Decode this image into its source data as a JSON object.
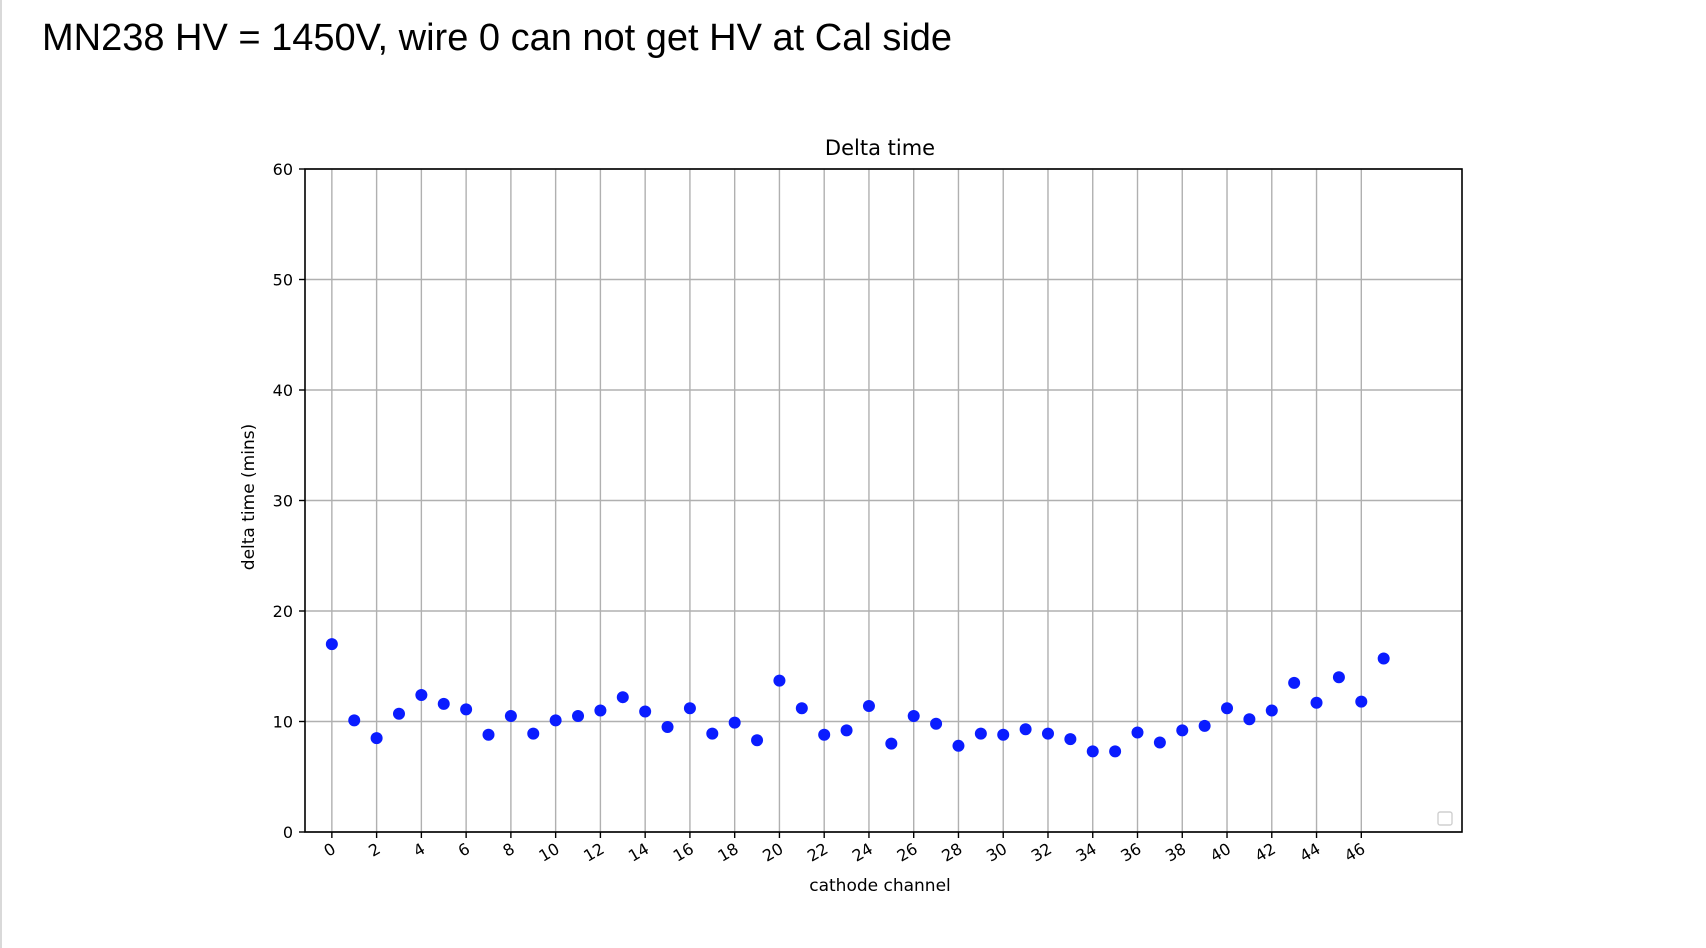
{
  "slide": {
    "title": "MN238 HV = 1450V, wire 0 can not get HV at Cal side"
  },
  "chart_data": {
    "type": "scatter",
    "title": "Delta time",
    "xlabel": "cathode channel",
    "ylabel": "delta time (mins)",
    "xlim": [
      -1.2,
      50.5
    ],
    "ylim": [
      0,
      60
    ],
    "xticks": [
      0,
      2,
      4,
      6,
      8,
      10,
      12,
      14,
      16,
      18,
      20,
      22,
      24,
      26,
      28,
      30,
      32,
      34,
      36,
      38,
      40,
      42,
      44,
      46
    ],
    "yticks": [
      0,
      10,
      20,
      30,
      40,
      50,
      60
    ],
    "grid": true,
    "legend": "bottom-right (empty)",
    "marker_color": "#0a1cff",
    "series": [
      {
        "x": [
          0,
          1,
          2,
          3,
          4,
          5,
          6,
          7,
          8,
          9,
          10,
          11,
          12,
          13,
          14,
          15,
          16,
          17,
          18,
          19,
          20,
          21,
          22,
          23,
          24,
          25,
          26,
          27,
          28,
          29,
          30,
          31,
          32,
          33,
          34,
          35,
          36,
          37,
          38,
          39,
          40,
          41,
          42,
          43,
          44,
          45,
          46,
          47
        ],
        "y": [
          17.0,
          10.1,
          8.5,
          10.7,
          12.4,
          11.6,
          11.1,
          8.8,
          10.5,
          8.9,
          10.1,
          10.5,
          11.0,
          12.2,
          10.9,
          9.5,
          11.2,
          8.9,
          9.9,
          8.3,
          13.7,
          11.2,
          8.8,
          9.2,
          11.4,
          8.0,
          10.5,
          9.8,
          7.8,
          8.9,
          8.8,
          9.3,
          8.9,
          8.4,
          7.3,
          7.3,
          9.0,
          8.1,
          9.2,
          9.6,
          11.2,
          10.2,
          11.0,
          13.5,
          11.7,
          14.0,
          11.8,
          15.7
        ]
      }
    ]
  }
}
